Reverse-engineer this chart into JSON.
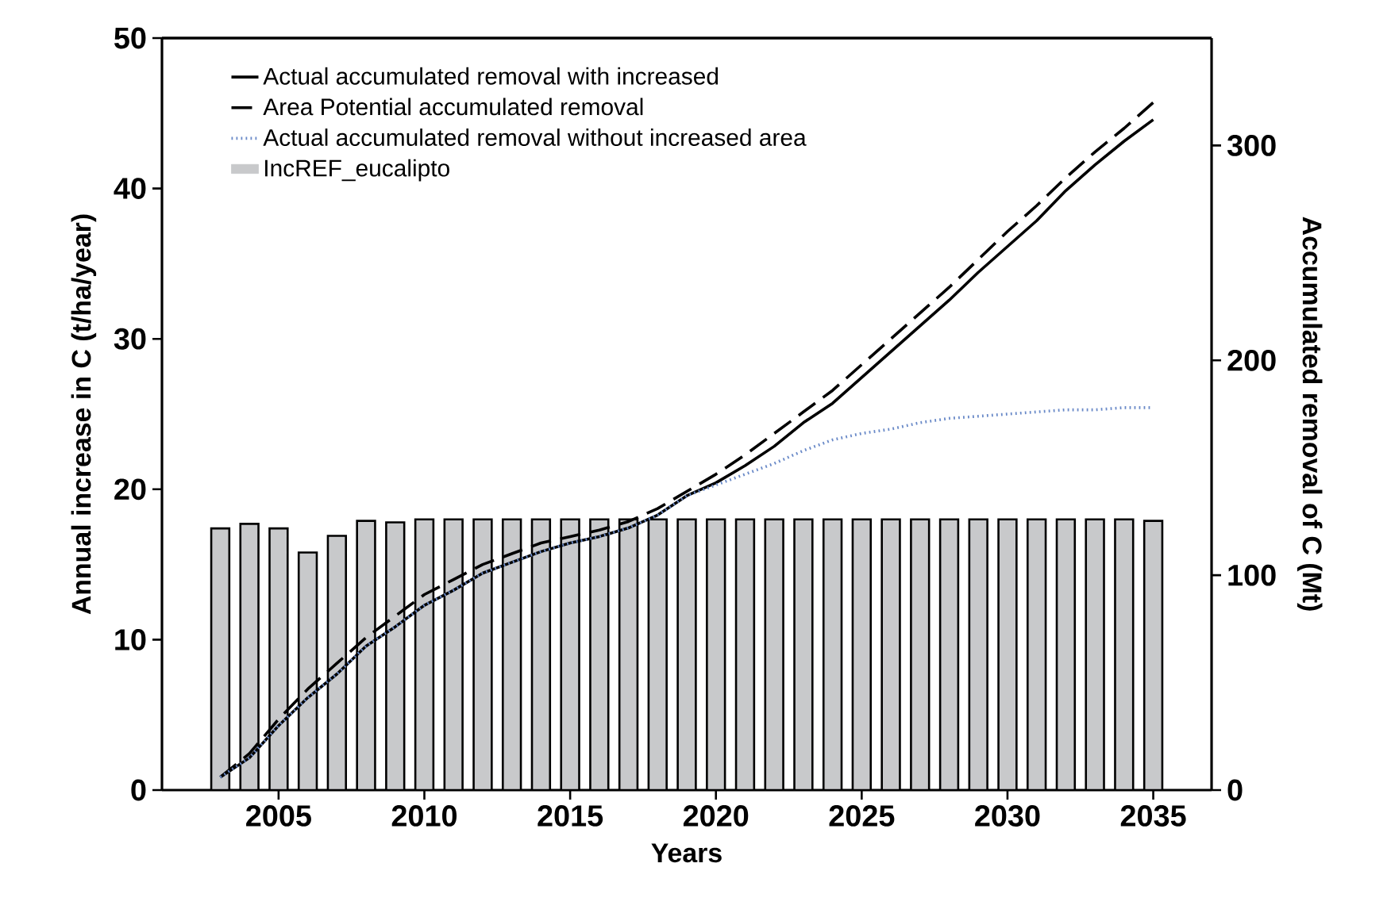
{
  "chart_data": {
    "type": "bar",
    "xlabel": "Years",
    "ylabel": "Annual increase in C (t/ha/year)",
    "y2label": "Accumulated removal of C (Mt)",
    "x": [
      2003,
      2004,
      2005,
      2006,
      2007,
      2008,
      2009,
      2010,
      2011,
      2012,
      2013,
      2014,
      2015,
      2016,
      2017,
      2018,
      2019,
      2020,
      2021,
      2022,
      2023,
      2024,
      2025,
      2026,
      2027,
      2028,
      2029,
      2030,
      2031,
      2032,
      2033,
      2034,
      2035
    ],
    "xlim": [
      2001,
      2037
    ],
    "xticks": [
      2005,
      2010,
      2015,
      2020,
      2025,
      2030,
      2035
    ],
    "ylim": [
      0,
      50
    ],
    "yticks": [
      0,
      10,
      20,
      30,
      40,
      50
    ],
    "y2lim": [
      0,
      350
    ],
    "y2ticks": [
      0,
      100,
      200,
      300
    ],
    "legend": "top left",
    "series": [
      {
        "name": "Actual accumulated removal with increased",
        "type": "line",
        "axis": "y2",
        "line_style": "solid",
        "color": "#000000",
        "values": [
          6,
          15,
          30,
          43,
          54,
          67,
          76,
          86,
          93,
          101,
          106,
          111,
          115,
          118,
          122,
          128,
          137,
          143,
          151,
          160,
          171,
          180,
          192,
          204,
          216,
          228,
          241,
          253,
          265,
          279,
          291,
          302,
          312
        ]
      },
      {
        "name": "Area Potential accumulated removal",
        "type": "line",
        "axis": "y2",
        "line_style": "dashed",
        "color": "#000000",
        "values": [
          6,
          17,
          33,
          47,
          59,
          71,
          81,
          91,
          98,
          105,
          110,
          115,
          118,
          121,
          125,
          131,
          139,
          147,
          156,
          166,
          176,
          186,
          198,
          210,
          222,
          234,
          247,
          260,
          272,
          285,
          297,
          308,
          320
        ]
      },
      {
        "name": "Actual accumulated removal without increased area",
        "type": "line",
        "axis": "y2",
        "line_style": "dotted",
        "color": "#6a8ac8",
        "values": [
          6,
          15,
          30,
          43,
          54,
          67,
          76,
          86,
          93,
          101,
          106,
          111,
          115,
          118,
          122,
          128,
          137,
          142,
          147,
          152,
          158,
          163,
          166,
          168,
          171,
          173,
          174,
          175,
          176,
          177,
          177,
          178,
          178
        ]
      },
      {
        "name": "IncREF_eucalipto",
        "axis": "y",
        "color": "#c8c9cb",
        "values": [
          17.4,
          17.7,
          17.4,
          15.8,
          16.9,
          17.9,
          17.8,
          18.0,
          18.0,
          18.0,
          18.0,
          18.0,
          18.0,
          18.0,
          18.0,
          18.0,
          18.0,
          18.0,
          18.0,
          18.0,
          18.0,
          18.0,
          18.0,
          18.0,
          18.0,
          18.0,
          18.0,
          18.0,
          18.0,
          18.0,
          18.0,
          18.0,
          17.9
        ]
      }
    ]
  }
}
